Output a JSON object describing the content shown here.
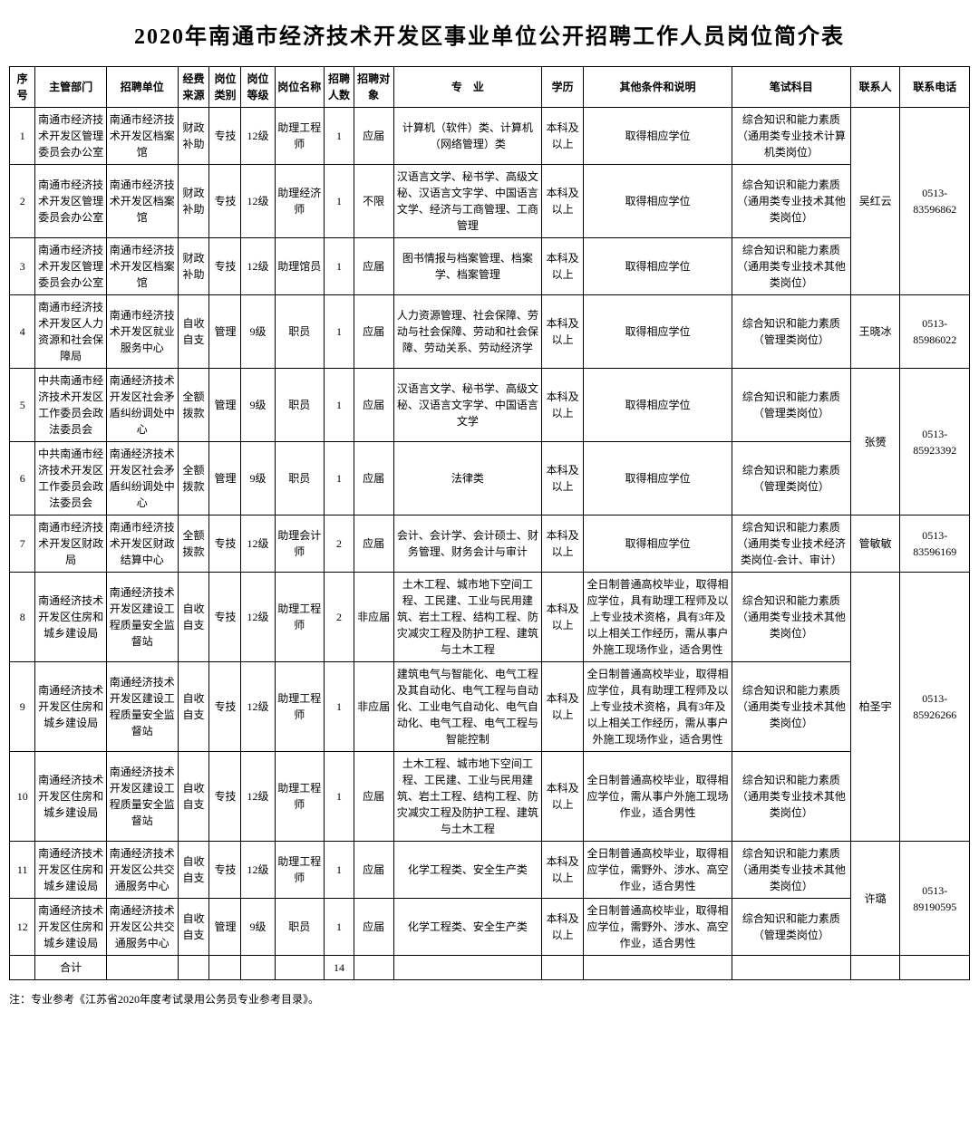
{
  "title": "2020年南通市经济技术开发区事业单位公开招聘工作人员岗位简介表",
  "footnote": "注：专业参考《江苏省2020年度考试录用公务员专业参考目录》。",
  "headers": {
    "seq": "序号",
    "dept": "主管部门",
    "unit": "招聘单位",
    "fund": "经费来源",
    "cat": "岗位类别",
    "level": "岗位等级",
    "pos": "岗位名称",
    "num": "招聘人数",
    "target": "招聘对象",
    "major": "专　业",
    "edu": "学历",
    "other": "其他条件和说明",
    "exam": "笔试科目",
    "contact": "联系人",
    "phone": "联系电话"
  },
  "total_label": "合计",
  "total_num": "14",
  "rows": [
    {
      "seq": "1",
      "dept": "南通市经济技术开发区管理委员会办公室",
      "unit": "南通市经济技术开发区档案馆",
      "fund": "财政补助",
      "cat": "专技",
      "level": "12级",
      "pos": "助理工程师",
      "num": "1",
      "target": "应届",
      "major": "计算机（软件）类、计算机（网络管理）类",
      "edu": "本科及以上",
      "other": "取得相应学位",
      "exam": "综合知识和能力素质（通用类专业技术计算机类岗位）"
    },
    {
      "seq": "2",
      "dept": "南通市经济技术开发区管理委员会办公室",
      "unit": "南通市经济技术开发区档案馆",
      "fund": "财政补助",
      "cat": "专技",
      "level": "12级",
      "pos": "助理经济师",
      "num": "1",
      "target": "不限",
      "major": "汉语言文学、秘书学、高级文秘、汉语言文字学、中国语言文学、经济与工商管理、工商管理",
      "edu": "本科及以上",
      "other": "取得相应学位",
      "exam": "综合知识和能力素质（通用类专业技术其他类岗位）"
    },
    {
      "seq": "3",
      "dept": "南通市经济技术开发区管理委员会办公室",
      "unit": "南通市经济技术开发区档案馆",
      "fund": "财政补助",
      "cat": "专技",
      "level": "12级",
      "pos": "助理馆员",
      "num": "1",
      "target": "应届",
      "major": "图书情报与档案管理、档案学、档案管理",
      "edu": "本科及以上",
      "other": "取得相应学位",
      "exam": "综合知识和能力素质（通用类专业技术其他类岗位）"
    },
    {
      "seq": "4",
      "dept": "南通市经济技术开发区人力资源和社会保障局",
      "unit": "南通市经济技术开发区就业服务中心",
      "fund": "自收自支",
      "cat": "管理",
      "level": "9级",
      "pos": "职员",
      "num": "1",
      "target": "应届",
      "major": "人力资源管理、社会保障、劳动与社会保障、劳动和社会保障、劳动关系、劳动经济学",
      "edu": "本科及以上",
      "other": "取得相应学位",
      "exam": "综合知识和能力素质（管理类岗位）"
    },
    {
      "seq": "5",
      "dept": "中共南通市经济技术开发区工作委员会政法委员会",
      "unit": "南通经济技术开发区社会矛盾纠纷调处中心",
      "fund": "全额拨款",
      "cat": "管理",
      "level": "9级",
      "pos": "职员",
      "num": "1",
      "target": "应届",
      "major": "汉语言文学、秘书学、高级文秘、汉语言文字学、中国语言文学",
      "edu": "本科及以上",
      "other": "取得相应学位",
      "exam": "综合知识和能力素质（管理类岗位）"
    },
    {
      "seq": "6",
      "dept": "中共南通市经济技术开发区工作委员会政法委员会",
      "unit": "南通经济技术开发区社会矛盾纠纷调处中心",
      "fund": "全额拨款",
      "cat": "管理",
      "level": "9级",
      "pos": "职员",
      "num": "1",
      "target": "应届",
      "major": "法律类",
      "edu": "本科及以上",
      "other": "取得相应学位",
      "exam": "综合知识和能力素质（管理类岗位）"
    },
    {
      "seq": "7",
      "dept": "南通市经济技术开发区财政局",
      "unit": "南通市经济技术开发区财政结算中心",
      "fund": "全额拨款",
      "cat": "专技",
      "level": "12级",
      "pos": "助理会计师",
      "num": "2",
      "target": "应届",
      "major": "会计、会计学、会计硕士、财务管理、财务会计与审计",
      "edu": "本科及以上",
      "other": "取得相应学位",
      "exam": "综合知识和能力素质（通用类专业技术经济类岗位-会计、审计）"
    },
    {
      "seq": "8",
      "dept": "南通经济技术开发区住房和城乡建设局",
      "unit": "南通经济技术开发区建设工程质量安全监督站",
      "fund": "自收自支",
      "cat": "专技",
      "level": "12级",
      "pos": "助理工程师",
      "num": "2",
      "target": "非应届",
      "major": "土木工程、城市地下空间工程、工民建、工业与民用建筑、岩土工程、结构工程、防灾减灾工程及防护工程、建筑与土木工程",
      "edu": "本科及以上",
      "other": "全日制普通高校毕业，取得相应学位，具有助理工程师及以上专业技术资格，具有3年及以上相关工作经历，需从事户外施工现场作业，适合男性",
      "exam": "综合知识和能力素质（通用类专业技术其他类岗位）"
    },
    {
      "seq": "9",
      "dept": "南通经济技术开发区住房和城乡建设局",
      "unit": "南通经济技术开发区建设工程质量安全监督站",
      "fund": "自收自支",
      "cat": "专技",
      "level": "12级",
      "pos": "助理工程师",
      "num": "1",
      "target": "非应届",
      "major": "建筑电气与智能化、电气工程及其自动化、电气工程与自动化、工业电气自动化、电气自动化、电气工程、电气工程与智能控制",
      "edu": "本科及以上",
      "other": "全日制普通高校毕业，取得相应学位，具有助理工程师及以上专业技术资格，具有3年及以上相关工作经历，需从事户外施工现场作业，适合男性",
      "exam": "综合知识和能力素质（通用类专业技术其他类岗位）"
    },
    {
      "seq": "10",
      "dept": "南通经济技术开发区住房和城乡建设局",
      "unit": "南通经济技术开发区建设工程质量安全监督站",
      "fund": "自收自支",
      "cat": "专技",
      "level": "12级",
      "pos": "助理工程师",
      "num": "1",
      "target": "应届",
      "major": "土木工程、城市地下空间工程、工民建、工业与民用建筑、岩土工程、结构工程、防灾减灾工程及防护工程、建筑与土木工程",
      "edu": "本科及以上",
      "other": "全日制普通高校毕业，取得相应学位，需从事户外施工现场作业，适合男性",
      "exam": "综合知识和能力素质（通用类专业技术其他类岗位）"
    },
    {
      "seq": "11",
      "dept": "南通经济技术开发区住房和城乡建设局",
      "unit": "南通经济技术开发区公共交通服务中心",
      "fund": "自收自支",
      "cat": "专技",
      "level": "12级",
      "pos": "助理工程师",
      "num": "1",
      "target": "应届",
      "major": "化学工程类、安全生产类",
      "edu": "本科及以上",
      "other": "全日制普通高校毕业，取得相应学位，需野外、涉水、高空作业，适合男性",
      "exam": "综合知识和能力素质（通用类专业技术其他类岗位）"
    },
    {
      "seq": "12",
      "dept": "南通经济技术开发区住房和城乡建设局",
      "unit": "南通经济技术开发区公共交通服务中心",
      "fund": "自收自支",
      "cat": "管理",
      "level": "9级",
      "pos": "职员",
      "num": "1",
      "target": "应届",
      "major": "化学工程类、安全生产类",
      "edu": "本科及以上",
      "other": "全日制普通高校毕业，取得相应学位，需野外、涉水、高空作业，适合男性",
      "exam": "综合知识和能力素质（管理类岗位）"
    }
  ],
  "contacts": [
    {
      "name": "吴红云",
      "phone": "0513-83596862",
      "rowspan": 3
    },
    {
      "name": "王晓冰",
      "phone": "0513-85986022",
      "rowspan": 1
    },
    {
      "name": "张赟",
      "phone": "0513-85923392",
      "rowspan": 2
    },
    {
      "name": "管敏敏",
      "phone": "0513-83596169",
      "rowspan": 1
    },
    {
      "name": "柏圣宇",
      "phone": "0513-85926266",
      "rowspan": 3
    },
    {
      "name": "许璐",
      "phone": "0513-89190595",
      "rowspan": 2
    }
  ]
}
